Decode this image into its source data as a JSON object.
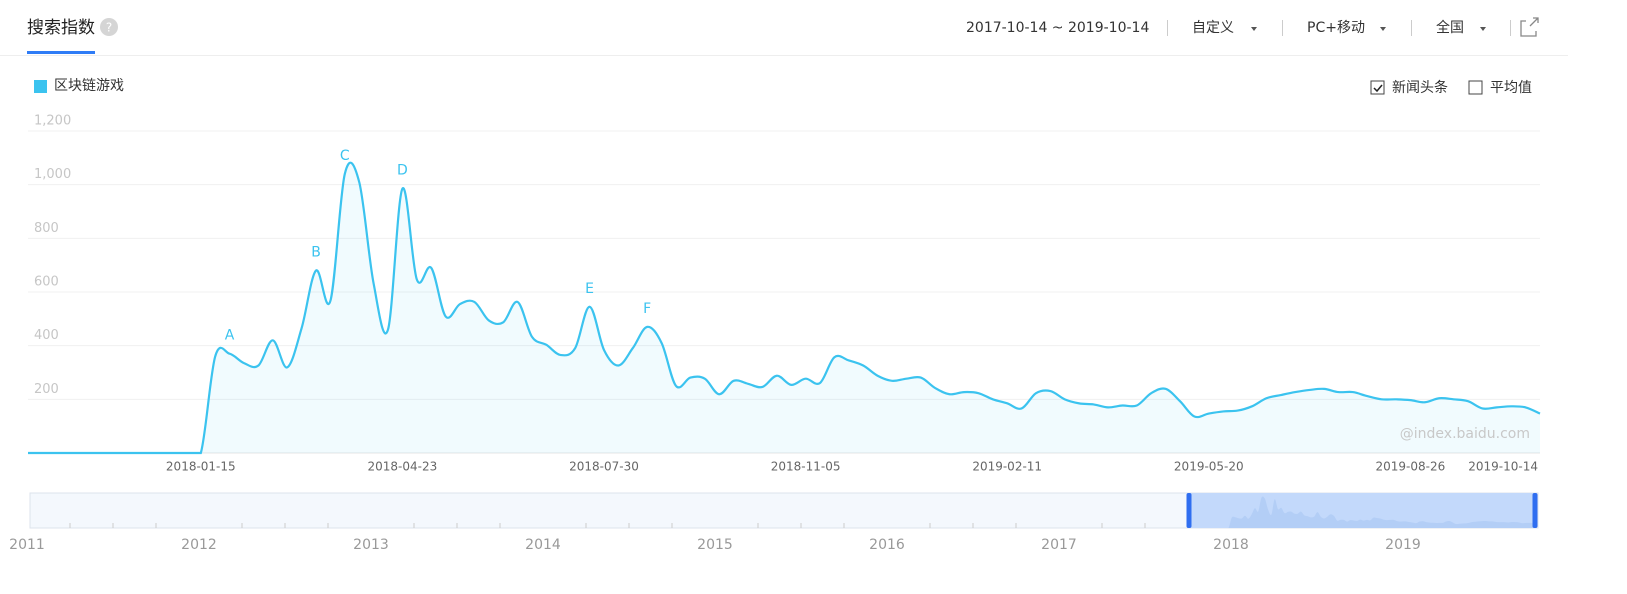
{
  "header": {
    "title": "搜索指数",
    "help": "?",
    "date_range": "2017-10-14 ~ 2019-10-14",
    "filters": [
      "自定义",
      "PC+移动",
      "全国"
    ],
    "options": [
      {
        "label": "新闻头条",
        "checked": true
      },
      {
        "label": "平均值",
        "checked": false
      }
    ]
  },
  "chart_data": {
    "type": "line",
    "area": true,
    "grid": true,
    "categories": [
      null,
      null,
      null,
      null,
      null,
      null,
      null,
      null,
      null,
      null,
      null,
      null,
      "2018-01-15",
      null,
      null,
      null,
      null,
      null,
      null,
      null,
      null,
      null,
      null,
      null,
      null,
      null,
      "2018-04-23",
      null,
      null,
      null,
      null,
      null,
      null,
      null,
      null,
      null,
      null,
      null,
      null,
      null,
      "2018-07-30",
      null,
      null,
      null,
      null,
      null,
      null,
      null,
      null,
      null,
      null,
      null,
      null,
      null,
      "2018-11-05",
      null,
      null,
      null,
      null,
      null,
      null,
      null,
      null,
      null,
      null,
      null,
      null,
      null,
      "2019-02-11",
      null,
      null,
      null,
      null,
      null,
      null,
      null,
      null,
      null,
      null,
      null,
      null,
      null,
      "2019-05-20",
      null,
      null,
      null,
      null,
      null,
      null,
      null,
      null,
      null,
      null,
      null,
      null,
      null,
      "2019-08-26",
      null,
      null,
      null,
      null,
      null,
      null,
      null,
      null,
      "2019-10-14"
    ],
    "series": [
      {
        "name": "区块链游戏",
        "color": "#3bc3ef",
        "values": [
          0,
          0,
          0,
          0,
          0,
          0,
          0,
          0,
          0,
          0,
          0,
          0,
          0,
          360,
          370,
          335,
          326,
          420,
          319,
          465,
          680,
          567,
          1040,
          1010,
          632,
          460,
          985,
          647,
          690,
          509,
          555,
          563,
          494,
          487,
          563,
          433,
          403,
          365,
          391,
          545,
          384,
          326,
          391,
          470,
          410,
          250,
          281,
          277,
          219,
          269,
          258,
          246,
          288,
          254,
          277,
          261,
          357,
          345,
          326,
          288,
          269,
          277,
          281,
          242,
          219,
          227,
          223,
          200,
          185,
          166,
          223,
          231,
          200,
          185,
          181,
          170,
          177,
          177,
          223,
          239,
          193,
          136,
          147,
          155,
          158,
          174,
          204,
          216,
          227,
          235,
          239,
          227,
          227,
          212,
          200,
          200,
          197,
          189,
          204,
          200,
          193,
          166,
          170,
          174,
          170,
          147
        ]
      }
    ],
    "ylim": [
      0,
      1200
    ],
    "yticks": [
      200,
      400,
      600,
      800,
      {
        "value": 1000,
        "label": "1,000"
      },
      {
        "value": 1200,
        "label": "1,200"
      }
    ],
    "annotations": [
      {
        "text": "A",
        "index": 14
      },
      {
        "text": "B",
        "index": 20
      },
      {
        "text": "C",
        "index": 22
      },
      {
        "text": "D",
        "index": 26
      },
      {
        "text": "E",
        "index": 39
      },
      {
        "text": "F",
        "index": 43
      }
    ],
    "watermark": "@index.baidu.com"
  },
  "navigator": {
    "years": [
      "2011",
      "2012",
      "2013",
      "2014",
      "2015",
      "2016",
      "2017",
      "2018",
      "2019"
    ]
  }
}
